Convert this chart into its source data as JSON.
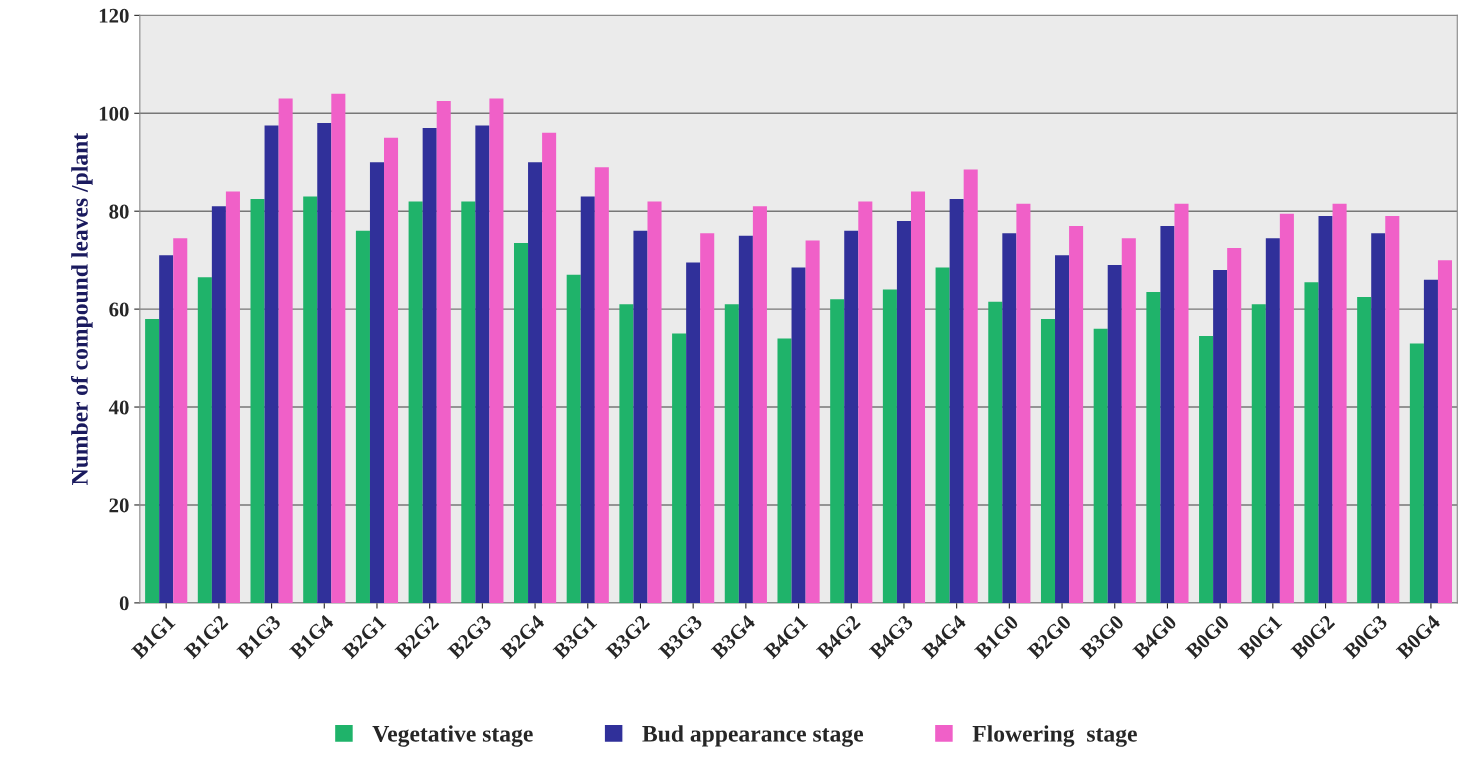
{
  "chart_data": {
    "type": "bar",
    "ylabel": "Number of compound leaves /plant",
    "categories": [
      "B1G1",
      "B1G2",
      "B1G3",
      "B1G4",
      "B2G1",
      "B2G2",
      "B2G3",
      "B2G4",
      "B3G1",
      "B3G2",
      "B3G3",
      "B3G4",
      "B4G1",
      "B4G2",
      "B4G3",
      "B4G4",
      "B1G0",
      "B2G0",
      "B3G0",
      "B4G0",
      "B0G0",
      "B0G1",
      "B0G2",
      "B0G3",
      "B0G4"
    ],
    "series": [
      {
        "name": "Vegetative stage",
        "color": "#1fb36a",
        "values": [
          58,
          66.5,
          82.5,
          83,
          76,
          82,
          82,
          73.5,
          67,
          61,
          55,
          61,
          54,
          62,
          64,
          68.5,
          61.5,
          58,
          56,
          63.5,
          54.5,
          61,
          65.5,
          62.5,
          53
        ]
      },
      {
        "name": "Bud appearance stage",
        "color": "#30309a",
        "values": [
          71,
          81,
          97.5,
          98,
          90,
          97,
          97.5,
          90,
          83,
          76,
          69.5,
          75,
          68.5,
          76,
          78,
          82.5,
          75.5,
          71,
          69,
          77,
          68,
          74.5,
          79,
          75.5,
          66
        ]
      },
      {
        "name": "Flowering  stage",
        "color": "#f060c8",
        "values": [
          74.5,
          84,
          103,
          104,
          95,
          102.5,
          103,
          96,
          89,
          82,
          75.5,
          81,
          74,
          82,
          84,
          88.5,
          81.5,
          77,
          74.5,
          81.5,
          72.5,
          79.5,
          81.5,
          79,
          70
        ]
      }
    ],
    "ylim": [
      0,
      120
    ],
    "yticks": [
      0,
      20,
      40,
      60,
      80,
      100,
      120
    ],
    "grid": "y",
    "legend": "bottom"
  }
}
